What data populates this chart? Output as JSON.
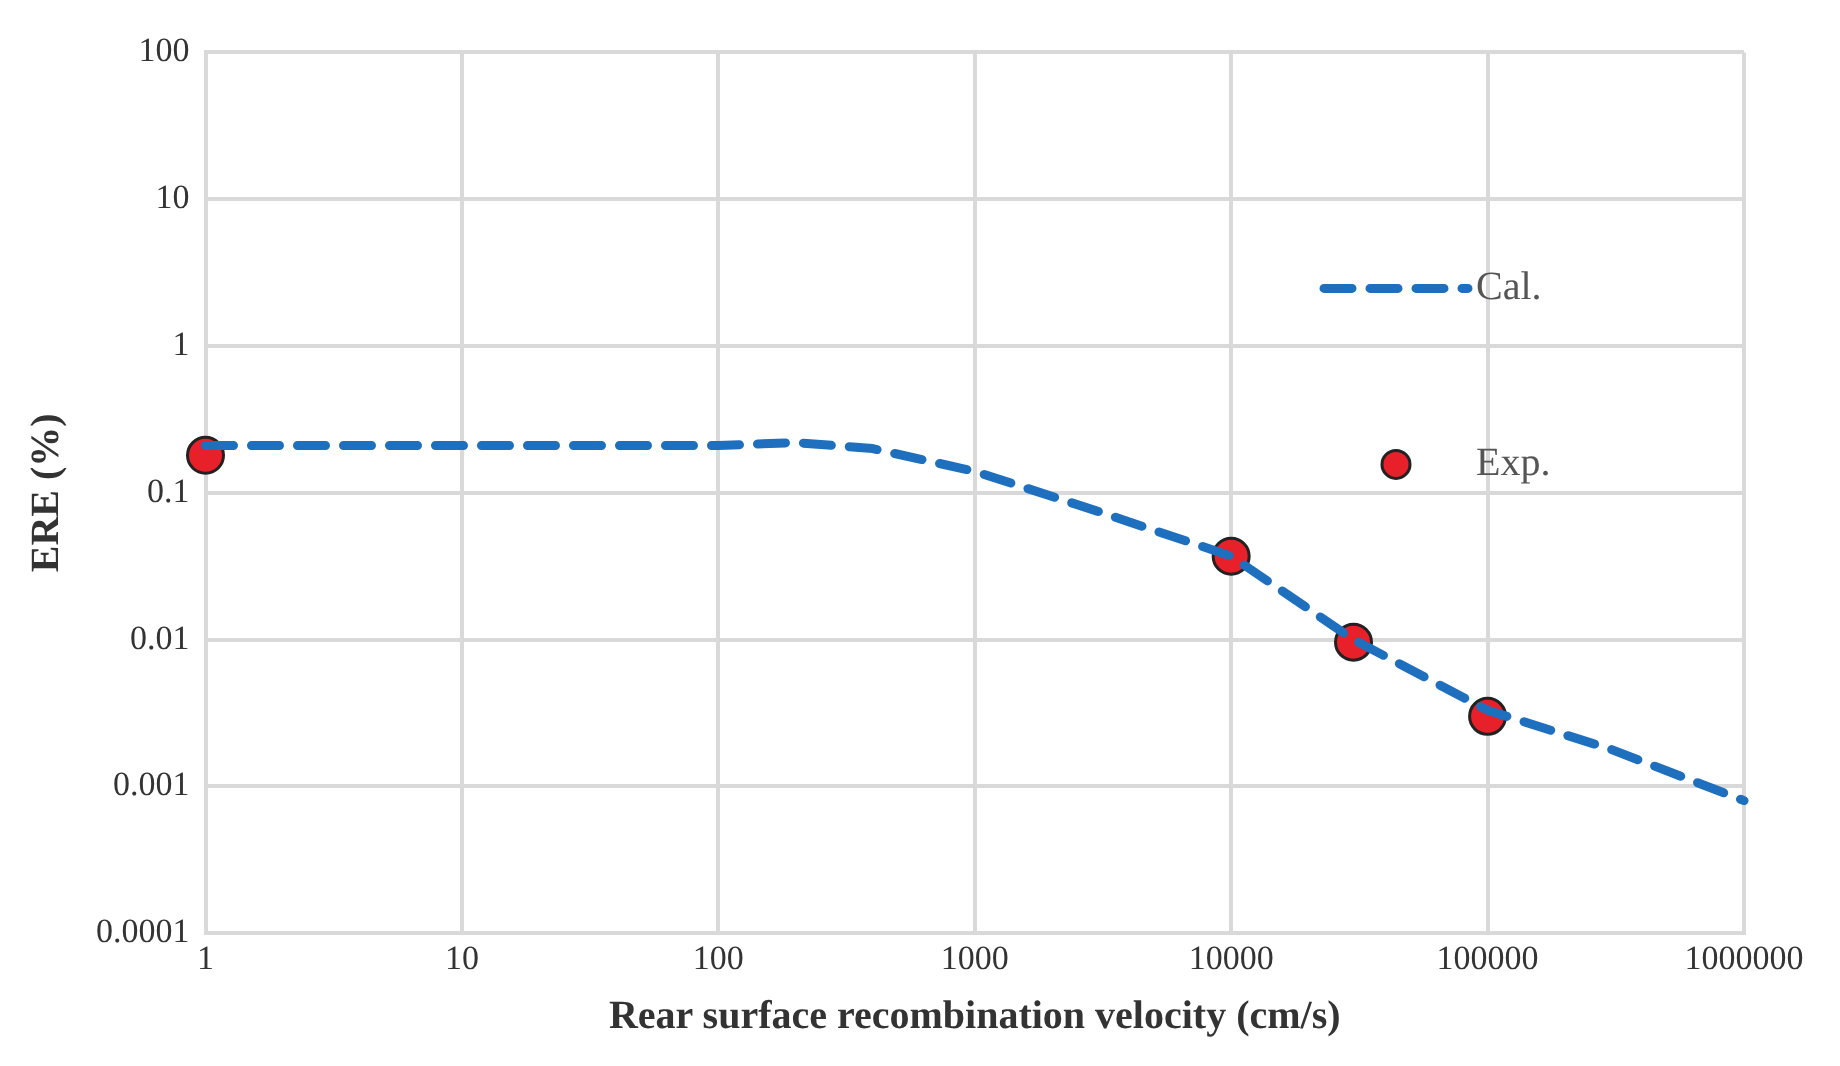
{
  "chart_data": {
    "type": "line",
    "xlabel": "Rear surface recombination velocity (cm/s)",
    "ylabel": "ERE (%)",
    "log": "xy",
    "xlim": [
      1,
      1000000
    ],
    "xticks": [
      1,
      10,
      100,
      1000,
      10000,
      100000,
      1000000
    ],
    "ylim": [
      0.0001,
      100
    ],
    "yticks": [
      0.0001,
      0.001,
      0.01,
      0.1,
      1,
      10,
      100
    ],
    "grid": true,
    "legend": "right",
    "series": [
      {
        "name": "Cal.",
        "type": "line",
        "line_style": "dashed",
        "marker": "none",
        "color": "#1f6fbf",
        "x": [
          1,
          10,
          100,
          200,
          400,
          1000,
          3000,
          10000,
          30000,
          100000,
          300000,
          1000000
        ],
        "values": [
          0.21,
          0.21,
          0.21,
          0.22,
          0.2,
          0.14,
          0.075,
          0.037,
          0.01,
          0.0033,
          0.0018,
          0.0008
        ]
      },
      {
        "name": "Exp.",
        "type": "scatter",
        "marker": "circle",
        "color": "#e8202a",
        "x": [
          1,
          10000,
          30000,
          100000
        ],
        "values": [
          0.18,
          0.037,
          0.0096,
          0.003
        ]
      }
    ]
  }
}
